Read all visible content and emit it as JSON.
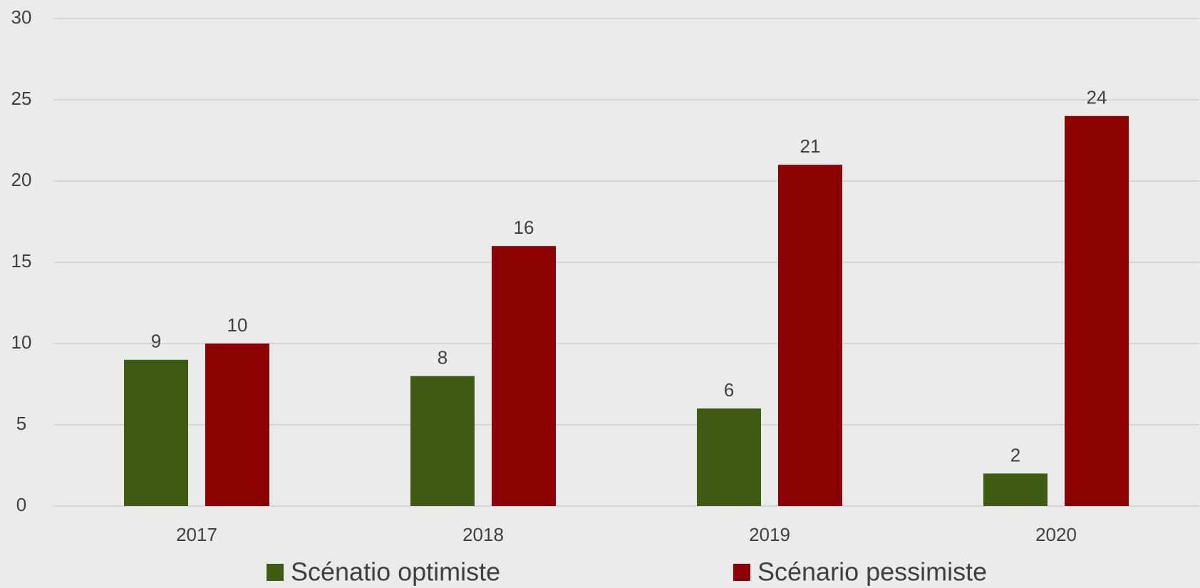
{
  "chart_data": {
    "type": "bar",
    "categories": [
      "2017",
      "2018",
      "2019",
      "2020"
    ],
    "series": [
      {
        "name": "Scénatio optimiste",
        "color": "#3f5a12",
        "values": [
          9,
          8,
          6,
          2
        ]
      },
      {
        "name": "Scénario pessimiste",
        "color": "#8b0000",
        "values": [
          10,
          16,
          21,
          24
        ]
      }
    ],
    "ylim": [
      0,
      30
    ],
    "yticks": [
      0,
      5,
      10,
      15,
      20,
      25,
      30
    ],
    "grid": true,
    "data_labels": true,
    "legend": "bottom"
  }
}
